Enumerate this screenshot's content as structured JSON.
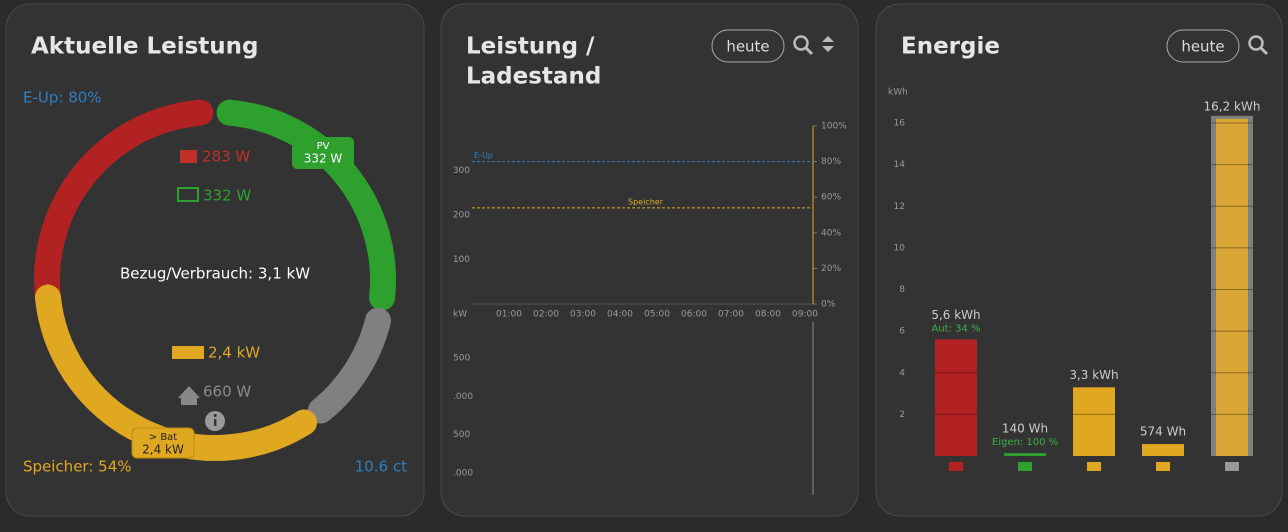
{
  "power_panel": {
    "title": "Aktuelle Leistung",
    "eup": "E-Up: 80%",
    "grid_power": "283 W",
    "pv_power": "332 W",
    "pv_badge": {
      "label": "PV",
      "value": "332 W"
    },
    "center": "Bezug/Verbrauch: 3,1 kW",
    "battery_power": "2,4 kW",
    "house_power": "660 W",
    "bat_badge": {
      "label": "> Bat",
      "value": "2,4 kW"
    },
    "storage": "Speicher: 54%",
    "price": "10.6 ct"
  },
  "chart_panel": {
    "title_lines": [
      "Leistung /",
      "Ladestand"
    ],
    "button": "heute",
    "chart_data": {
      "type": "line",
      "xticks": [
        "01:00",
        "02:00",
        "03:00",
        "04:00",
        "05:00",
        "06:00",
        "07:00",
        "08:00",
        "09:00"
      ],
      "ylim": [
        0,
        400
      ],
      "yticks": [
        100,
        200,
        300
      ],
      "y2lim": [
        0,
        100
      ],
      "y2ticks": [
        {
          "value": 0,
          "label": "0%"
        },
        {
          "value": 20,
          "label": "20%"
        },
        {
          "value": 40,
          "label": "40%"
        },
        {
          "value": 60,
          "label": "60%"
        },
        {
          "value": 80,
          "label": "80%"
        },
        {
          "value": 100,
          "label": "100%"
        }
      ],
      "reference_lines": [
        {
          "name": "E-Up",
          "value": 80,
          "axis": "y2",
          "color": "#2f7fc1"
        },
        {
          "name": "Speicher",
          "value": 54,
          "axis": "y2",
          "color": "#e0a820"
        }
      ],
      "lower_unit": "kW",
      "lower_tick_labels": [
        "500",
        ".000",
        "500",
        ".000"
      ]
    }
  },
  "energy_panel": {
    "title": "Energie",
    "button": "heute",
    "chart_data": {
      "type": "bar",
      "unit": "kWh",
      "ylim": [
        0,
        16
      ],
      "yticks": [
        2,
        4,
        6,
        8,
        10,
        12,
        14,
        16
      ],
      "values": [
        5.6,
        0.14,
        3.3,
        0.574,
        16.2
      ],
      "value_labels": [
        "5,6 kWh",
        "140 Wh",
        "3,3 kWh",
        "574 Wh",
        "16,2 kWh"
      ],
      "sublabels": [
        "Aut: 34 %",
        "Eigen: 100 %",
        null,
        null,
        null
      ],
      "colors": [
        "#b22222",
        "#2ea02e",
        "#e0a820",
        "#e0a820",
        "#d9a535"
      ],
      "outline_colors": [
        null,
        null,
        null,
        null,
        "#808080"
      ]
    }
  }
}
